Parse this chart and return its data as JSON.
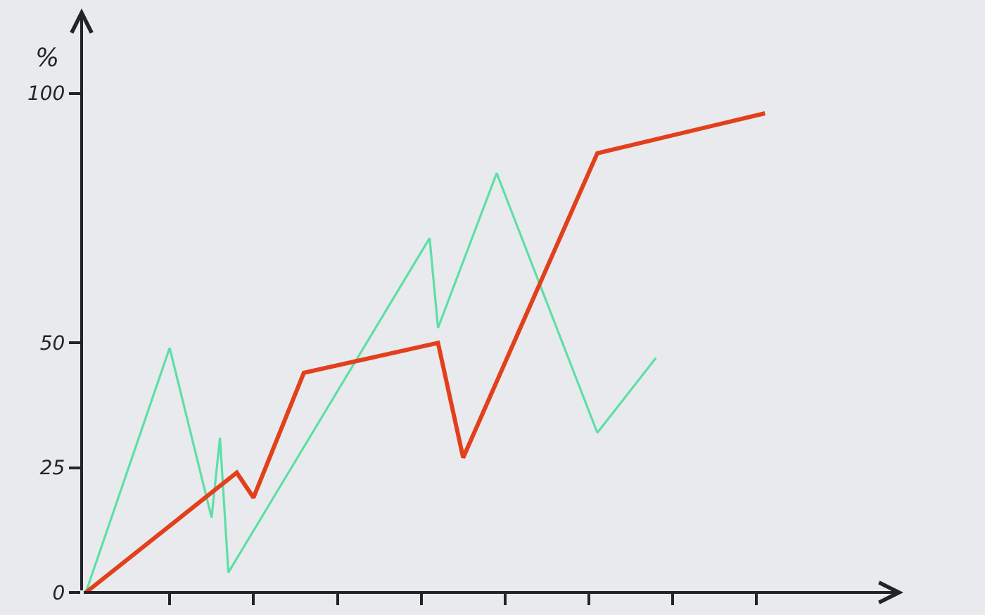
{
  "chart_data": {
    "type": "line",
    "ylabel": "%",
    "categories": [
      null,
      null,
      null,
      null,
      null,
      null,
      null,
      null,
      null,
      null,
      null,
      null,
      null,
      null,
      null,
      null,
      null,
      null,
      null,
      null,
      null,
      null,
      null,
      null,
      null,
      null,
      null,
      null,
      null,
      null,
      null,
      null,
      null,
      null,
      null,
      null,
      null,
      null,
      null,
      null,
      null,
      null,
      null,
      null,
      null,
      null,
      null,
      null,
      null,
      null,
      null,
      null,
      null,
      null,
      null,
      null,
      null,
      null,
      null,
      null,
      null,
      null,
      null,
      null,
      null,
      null,
      null,
      null,
      null,
      null,
      null,
      null,
      null,
      null,
      null,
      null,
      null,
      null,
      null,
      null,
      null,
      null,
      null,
      null,
      null,
      null,
      null,
      null,
      null,
      null,
      null,
      null,
      null,
      null,
      null,
      null,
      null,
      null
    ],
    "series": [
      {
        "color": "#5ddfa6",
        "values": [
          0,
          null,
          null,
          null,
          null,
          null,
          null,
          null,
          null,
          null,
          49,
          null,
          null,
          null,
          null,
          15,
          31,
          4,
          null,
          null,
          null,
          null,
          null,
          null,
          null,
          null,
          null,
          null,
          null,
          null,
          null,
          null,
          null,
          null,
          null,
          null,
          null,
          null,
          null,
          null,
          null,
          71,
          53,
          null,
          null,
          null,
          null,
          null,
          null,
          84,
          null,
          null,
          null,
          null,
          null,
          null,
          null,
          null,
          null,
          null,
          null,
          32,
          null,
          null,
          null,
          null,
          null,
          null,
          47,
          null,
          null,
          null,
          null,
          null,
          null,
          null,
          null,
          null,
          null,
          null,
          null,
          null,
          null,
          null,
          null,
          null,
          null,
          null,
          null,
          null,
          null,
          null,
          null,
          null,
          null,
          null,
          null,
          null
        ]
      },
      {
        "color": "#e2401c",
        "values": [
          0,
          null,
          null,
          null,
          null,
          null,
          null,
          null,
          null,
          null,
          null,
          null,
          null,
          null,
          null,
          null,
          null,
          null,
          24,
          null,
          19,
          null,
          null,
          null,
          null,
          null,
          44,
          null,
          null,
          null,
          null,
          null,
          null,
          null,
          null,
          null,
          null,
          null,
          null,
          null,
          null,
          null,
          50,
          null,
          null,
          27,
          null,
          null,
          null,
          null,
          null,
          null,
          null,
          null,
          null,
          null,
          null,
          null,
          null,
          null,
          null,
          88,
          null,
          null,
          null,
          null,
          null,
          null,
          null,
          null,
          null,
          null,
          null,
          null,
          null,
          null,
          null,
          null,
          null,
          null,
          null,
          96,
          null,
          null,
          null,
          null,
          null,
          null,
          null,
          null,
          null,
          null,
          null,
          null,
          null,
          null,
          null,
          null
        ]
      }
    ],
    "ylim": [
      0,
      117
    ],
    "yticks": [
      0,
      25,
      50,
      100
    ],
    "tick_labels": "y"
  }
}
